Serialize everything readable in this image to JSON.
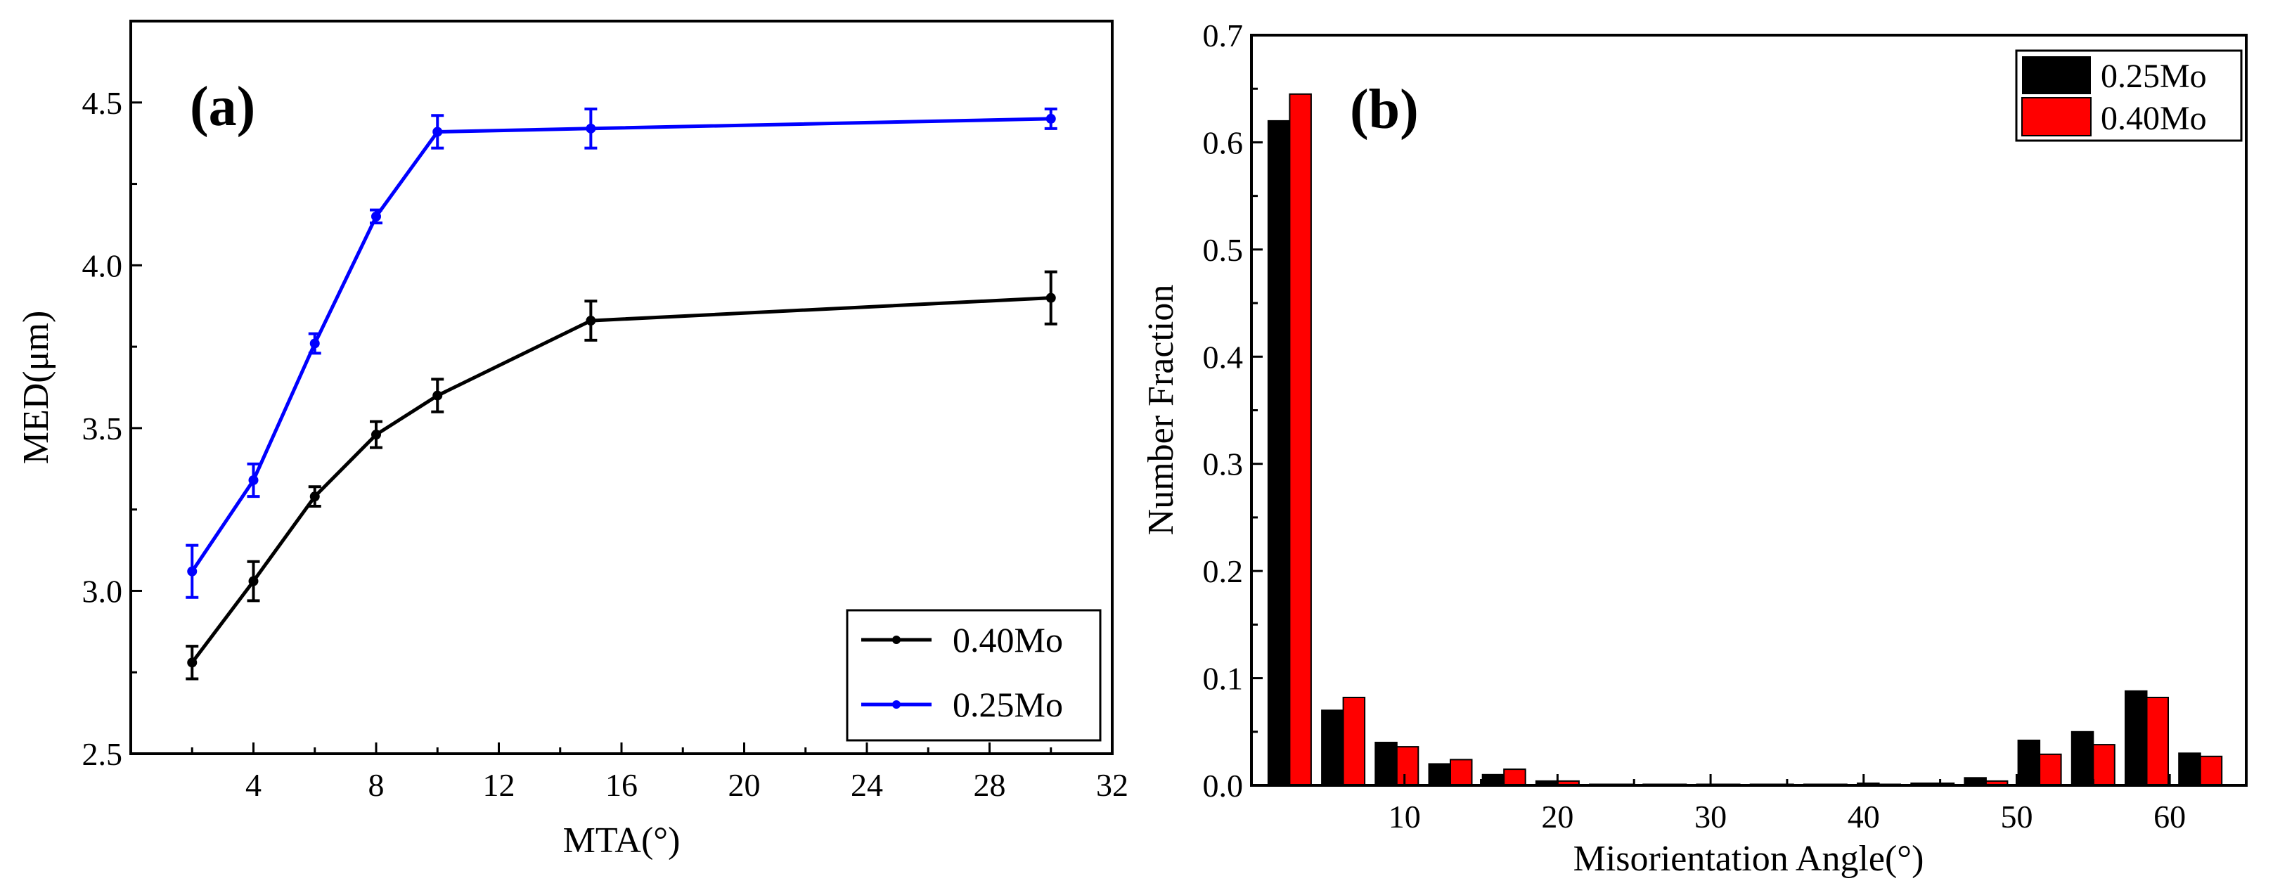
{
  "colors": {
    "black_series": "#000000",
    "blue_series": "#0000ff",
    "red_series": "#ff0000",
    "axis": "#000000",
    "background": "#ffffff"
  },
  "chart_data": [
    {
      "type": "line",
      "panel_label": "(a)",
      "xlabel": "MTA(°)",
      "ylabel": "MED(μm)",
      "xlim": [
        0,
        32
      ],
      "ylim": [
        2.5,
        4.75
      ],
      "x_ticks": [
        4,
        8,
        12,
        16,
        20,
        24,
        28,
        32
      ],
      "x_tick_labels": [
        "4",
        "8",
        "12",
        "16",
        "20",
        "24",
        "28",
        "32"
      ],
      "y_ticks": [
        2.5,
        3.0,
        3.5,
        4.0,
        4.5
      ],
      "y_tick_labels": [
        "2.5",
        "3.0",
        "3.5",
        "4.0",
        "4.5"
      ],
      "grid": false,
      "legend_position": "bottom-right",
      "series": [
        {
          "name": "0.40Mo",
          "color": "#000000",
          "x": [
            2,
            4,
            6,
            8,
            10,
            15,
            30
          ],
          "y": [
            2.78,
            3.03,
            3.29,
            3.48,
            3.6,
            3.83,
            3.9
          ],
          "err": [
            0.05,
            0.06,
            0.03,
            0.04,
            0.05,
            0.06,
            0.08
          ]
        },
        {
          "name": "0.25Mo",
          "color": "#0000ff",
          "x": [
            2,
            4,
            6,
            8,
            10,
            15,
            30
          ],
          "y": [
            3.06,
            3.34,
            3.76,
            4.15,
            4.41,
            4.42,
            4.45
          ],
          "err": [
            0.08,
            0.05,
            0.03,
            0.02,
            0.05,
            0.06,
            0.03
          ]
        }
      ]
    },
    {
      "type": "bar",
      "panel_label": "(b)",
      "xlabel": "Misorientation Angle(°)",
      "ylabel": "Number Fraction",
      "xlim": [
        0,
        65
      ],
      "ylim": [
        0,
        0.7
      ],
      "x_ticks": [
        10,
        20,
        30,
        40,
        50,
        60
      ],
      "x_tick_labels": [
        "10",
        "20",
        "30",
        "40",
        "50",
        "60"
      ],
      "y_ticks": [
        0.0,
        0.1,
        0.2,
        0.3,
        0.4,
        0.5,
        0.6,
        0.7
      ],
      "y_tick_labels": [
        "0.0",
        "0.1",
        "0.2",
        "0.3",
        "0.4",
        "0.5",
        "0.6",
        "0.7"
      ],
      "grid": false,
      "legend_position": "top-right",
      "bin_centers": [
        2.5,
        6,
        9.5,
        13,
        16.5,
        20,
        23.5,
        27,
        30.5,
        34,
        37.5,
        41,
        44.5,
        48,
        51.5,
        55,
        58.5,
        62
      ],
      "series": [
        {
          "name": "0.25Mo",
          "color": "#000000",
          "values": [
            0.62,
            0.07,
            0.04,
            0.02,
            0.01,
            0.004,
            0.001,
            0.001,
            0.001,
            0.001,
            0.001,
            0.002,
            0.002,
            0.007,
            0.042,
            0.05,
            0.088,
            0.03
          ]
        },
        {
          "name": "0.40Mo",
          "color": "#ff0000",
          "values": [
            0.645,
            0.082,
            0.036,
            0.024,
            0.015,
            0.004,
            0.001,
            0.001,
            0.001,
            0.001,
            0.001,
            0.001,
            0.002,
            0.004,
            0.029,
            0.038,
            0.082,
            0.027
          ]
        }
      ]
    }
  ]
}
